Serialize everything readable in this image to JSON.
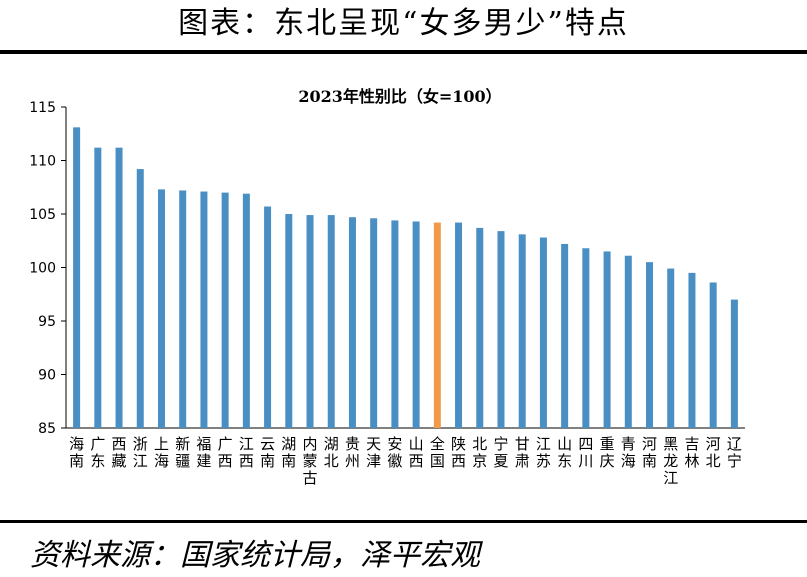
{
  "header": {
    "title": "图表：东北呈现“女多男少”特点"
  },
  "source": "资料来源：国家统计局，泽平宏观",
  "colors": {
    "bar": "#4a8fc4",
    "highlight": "#f29a4a",
    "axis": "#000000",
    "rule": "#000000"
  },
  "chart_data": {
    "type": "bar",
    "title": "2023年性别比（女=100）",
    "xlabel": "",
    "ylabel": "",
    "ylim": [
      85,
      115
    ],
    "yticks": [
      85,
      90,
      95,
      100,
      105,
      110,
      115
    ],
    "grid": false,
    "highlight_category": "全国",
    "categories": [
      "海南",
      "广东",
      "西藏",
      "浙江",
      "上海",
      "新疆",
      "福建",
      "广西",
      "江西",
      "云南",
      "湖南",
      "内蒙古",
      "湖北",
      "贵州",
      "天津",
      "安徽",
      "山西",
      "全国",
      "陕西",
      "北京",
      "宁夏",
      "甘肃",
      "江苏",
      "山东",
      "四川",
      "重庆",
      "青海",
      "河南",
      "黑龙江",
      "吉林",
      "河北",
      "辽宁"
    ],
    "values": [
      113.1,
      111.2,
      111.2,
      109.2,
      107.3,
      107.2,
      107.1,
      107.0,
      106.9,
      105.7,
      105.0,
      104.9,
      104.9,
      104.7,
      104.6,
      104.4,
      104.3,
      104.2,
      104.2,
      103.7,
      103.4,
      103.1,
      102.8,
      102.2,
      101.8,
      101.5,
      101.1,
      100.5,
      99.9,
      99.5,
      98.6,
      97.0
    ]
  }
}
